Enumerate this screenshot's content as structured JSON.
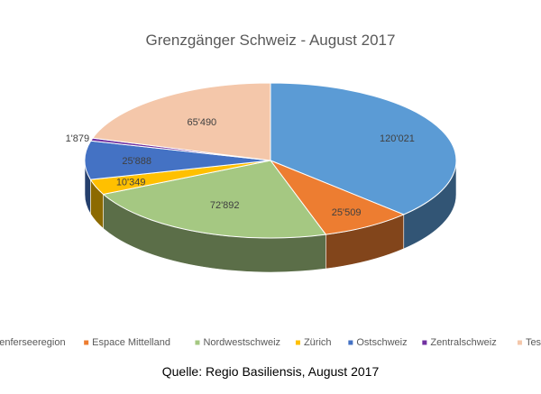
{
  "chart_data": {
    "type": "pie",
    "title": "Grenzgänger Schweiz - August 2017",
    "categories": [
      "Genferseeregion",
      "Espace Mittelland",
      "Nordwestschweiz",
      "Zürich",
      "Ostschweiz",
      "Zentralschweiz",
      "Tessin"
    ],
    "values": [
      120021,
      25509,
      72892,
      10349,
      25888,
      1879,
      65490
    ],
    "labels": [
      "120'021",
      "25'509",
      "72'892",
      "10'349",
      "25'888",
      "1'879",
      "65'490"
    ],
    "colors": [
      "#5b9bd5",
      "#ed7d31",
      "#a5c882",
      "#ffc000",
      "#4472c4",
      "#7030a0",
      "#f4c7aa"
    ],
    "legend_position": "bottom",
    "style": "3d"
  },
  "source": "Quelle: Regio Basiliensis, August 2017"
}
